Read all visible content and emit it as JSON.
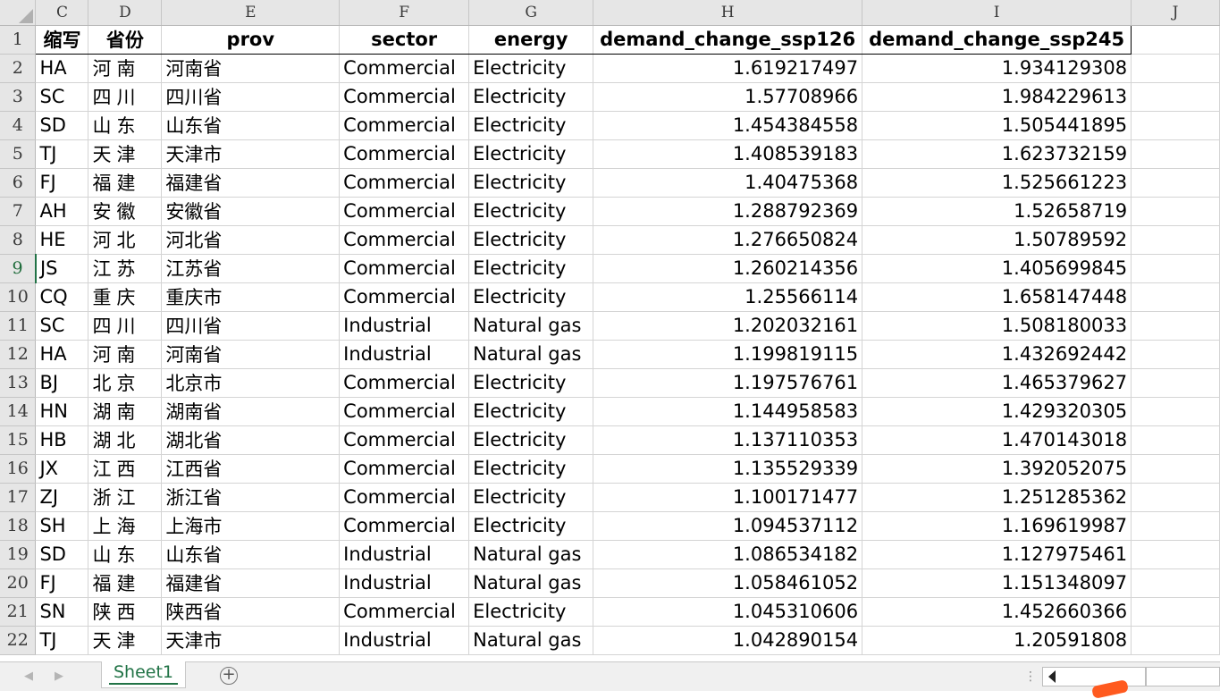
{
  "columns": [
    "C",
    "D",
    "E",
    "F",
    "G",
    "H",
    "I",
    "J"
  ],
  "header_row_number": "1",
  "headers": [
    "缩写",
    "省份",
    "prov",
    "sector",
    "energy",
    "demand_change_ssp126",
    "demand_change_ssp245"
  ],
  "rows": [
    {
      "n": "2",
      "abbr": "HA",
      "province": "河南",
      "prov": "河南省",
      "sector": "Commercial",
      "energy": "Electricity",
      "ssp126": "1.619217497",
      "ssp245": "1.934129308"
    },
    {
      "n": "3",
      "abbr": "SC",
      "province": "四川",
      "prov": "四川省",
      "sector": "Commercial",
      "energy": "Electricity",
      "ssp126": "1.57708966",
      "ssp245": "1.984229613"
    },
    {
      "n": "4",
      "abbr": "SD",
      "province": "山东",
      "prov": "山东省",
      "sector": "Commercial",
      "energy": "Electricity",
      "ssp126": "1.454384558",
      "ssp245": "1.505441895"
    },
    {
      "n": "5",
      "abbr": "TJ",
      "province": "天津",
      "prov": "天津市",
      "sector": "Commercial",
      "energy": "Electricity",
      "ssp126": "1.408539183",
      "ssp245": "1.623732159"
    },
    {
      "n": "6",
      "abbr": "FJ",
      "province": "福建",
      "prov": "福建省",
      "sector": "Commercial",
      "energy": "Electricity",
      "ssp126": "1.40475368",
      "ssp245": "1.525661223"
    },
    {
      "n": "7",
      "abbr": "AH",
      "province": "安徽",
      "prov": "安徽省",
      "sector": "Commercial",
      "energy": "Electricity",
      "ssp126": "1.288792369",
      "ssp245": "1.52658719"
    },
    {
      "n": "8",
      "abbr": "HE",
      "province": "河北",
      "prov": "河北省",
      "sector": "Commercial",
      "energy": "Electricity",
      "ssp126": "1.276650824",
      "ssp245": "1.50789592"
    },
    {
      "n": "9",
      "abbr": "JS",
      "province": "江苏",
      "prov": "江苏省",
      "sector": "Commercial",
      "energy": "Electricity",
      "ssp126": "1.260214356",
      "ssp245": "1.405699845"
    },
    {
      "n": "10",
      "abbr": "CQ",
      "province": "重庆",
      "prov": "重庆市",
      "sector": "Commercial",
      "energy": "Electricity",
      "ssp126": "1.25566114",
      "ssp245": "1.658147448"
    },
    {
      "n": "11",
      "abbr": "SC",
      "province": "四川",
      "prov": "四川省",
      "sector": "Industrial",
      "energy": "Natural gas",
      "ssp126": "1.202032161",
      "ssp245": "1.508180033"
    },
    {
      "n": "12",
      "abbr": "HA",
      "province": "河南",
      "prov": "河南省",
      "sector": "Industrial",
      "energy": "Natural gas",
      "ssp126": "1.199819115",
      "ssp245": "1.432692442"
    },
    {
      "n": "13",
      "abbr": "BJ",
      "province": "北京",
      "prov": "北京市",
      "sector": "Commercial",
      "energy": "Electricity",
      "ssp126": "1.197576761",
      "ssp245": "1.465379627"
    },
    {
      "n": "14",
      "abbr": "HN",
      "province": "湖南",
      "prov": "湖南省",
      "sector": "Commercial",
      "energy": "Electricity",
      "ssp126": "1.144958583",
      "ssp245": "1.429320305"
    },
    {
      "n": "15",
      "abbr": "HB",
      "province": "湖北",
      "prov": "湖北省",
      "sector": "Commercial",
      "energy": "Electricity",
      "ssp126": "1.137110353",
      "ssp245": "1.470143018"
    },
    {
      "n": "16",
      "abbr": "JX",
      "province": "江西",
      "prov": "江西省",
      "sector": "Commercial",
      "energy": "Electricity",
      "ssp126": "1.135529339",
      "ssp245": "1.392052075"
    },
    {
      "n": "17",
      "abbr": "ZJ",
      "province": "浙江",
      "prov": "浙江省",
      "sector": "Commercial",
      "energy": "Electricity",
      "ssp126": "1.100171477",
      "ssp245": "1.251285362"
    },
    {
      "n": "18",
      "abbr": "SH",
      "province": "上海",
      "prov": "上海市",
      "sector": "Commercial",
      "energy": "Electricity",
      "ssp126": "1.094537112",
      "ssp245": "1.169619987"
    },
    {
      "n": "19",
      "abbr": "SD",
      "province": "山东",
      "prov": "山东省",
      "sector": "Industrial",
      "energy": "Natural gas",
      "ssp126": "1.086534182",
      "ssp245": "1.127975461"
    },
    {
      "n": "20",
      "abbr": "FJ",
      "province": "福建",
      "prov": "福建省",
      "sector": "Industrial",
      "energy": "Natural gas",
      "ssp126": "1.058461052",
      "ssp245": "1.151348097"
    },
    {
      "n": "21",
      "abbr": "SN",
      "province": "陕西",
      "prov": "陕西省",
      "sector": "Commercial",
      "energy": "Electricity",
      "ssp126": "1.045310606",
      "ssp245": "1.452660366"
    },
    {
      "n": "22",
      "abbr": "TJ",
      "province": "天津",
      "prov": "天津市",
      "sector": "Industrial",
      "energy": "Natural gas",
      "ssp126": "1.042890154",
      "ssp245": "1.20591808"
    }
  ],
  "selected_row": "9",
  "sheet_tabs": [
    {
      "label": "Sheet1",
      "active": true
    }
  ],
  "icons": {
    "nav_prev": "triangle-left-icon",
    "nav_next": "triangle-right-icon",
    "add_sheet": "plus-circle-icon",
    "splitter": "vertical-dots-icon",
    "scroll_left": "triangle-left-icon"
  },
  "colors": {
    "accent": "#217346",
    "header_bg": "#e6e6e6",
    "gridline": "#d4d4d4"
  }
}
